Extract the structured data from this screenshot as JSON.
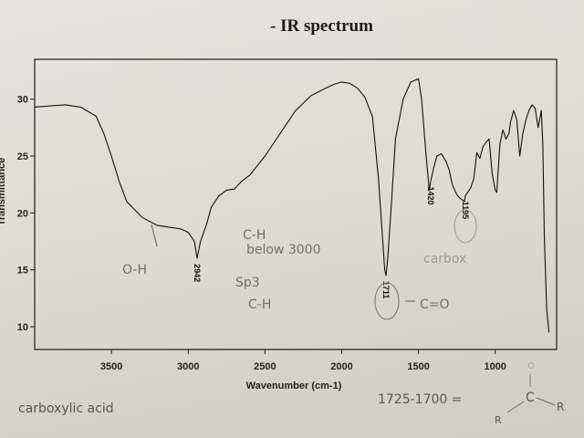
{
  "chart_data": {
    "type": "line",
    "title": "- IR spectrum",
    "xlabel": "Wavenumber (cm-1)",
    "ylabel": "Transmittance",
    "x_reversed": true,
    "xlim": [
      4000,
      600
    ],
    "ylim": [
      8,
      33.5
    ],
    "xticks": [
      3500,
      3000,
      2500,
      2000,
      1500,
      1000
    ],
    "xtick_labels": [
      "3500",
      "3000",
      "2500",
      "2000",
      "1500",
      "1000"
    ],
    "yticks": [
      10,
      15,
      20,
      25,
      30
    ],
    "ytick_labels": [
      "10",
      "15",
      "20",
      "25",
      "30"
    ],
    "grid": false,
    "series": [
      {
        "x": [
          4000,
          3900,
          3800,
          3700,
          3600,
          3550,
          3500,
          3450,
          3400,
          3300,
          3200,
          3100,
          3050,
          3000,
          2960,
          2942,
          2920,
          2880,
          2850,
          2800,
          2750,
          2700,
          2650,
          2600,
          2500,
          2400,
          2300,
          2200,
          2100,
          2050,
          2000,
          1950,
          1900,
          1850,
          1800,
          1760,
          1740,
          1720,
          1711,
          1700,
          1680,
          1650,
          1600,
          1550,
          1500,
          1480,
          1450,
          1430,
          1420,
          1400,
          1380,
          1350,
          1320,
          1300,
          1280,
          1250,
          1230,
          1200,
          1195,
          1180,
          1160,
          1140,
          1120,
          1100,
          1080,
          1060,
          1040,
          1020,
          1000,
          990,
          970,
          950,
          930,
          910,
          900,
          880,
          860,
          840,
          820,
          800,
          780,
          760,
          740,
          720,
          700,
          690,
          680,
          665,
          650
        ],
        "y": [
          29.3,
          29.4,
          29.5,
          29.3,
          28.5,
          27.0,
          25.0,
          22.8,
          21.0,
          19.6,
          18.9,
          18.7,
          18.6,
          18.3,
          17.5,
          16.0,
          17.5,
          19.0,
          20.5,
          21.5,
          22.0,
          22.1,
          22.8,
          23.3,
          25.0,
          27.0,
          29.0,
          30.3,
          31.0,
          31.3,
          31.5,
          31.4,
          31.0,
          30.2,
          28.5,
          23.0,
          19.0,
          15.0,
          14.5,
          16.0,
          20.0,
          26.5,
          30.0,
          31.5,
          31.8,
          30.0,
          25.0,
          22.0,
          22.8,
          24.0,
          25.0,
          25.2,
          24.5,
          23.8,
          22.5,
          21.6,
          21.3,
          21.0,
          21.5,
          21.8,
          22.2,
          23.0,
          25.3,
          24.8,
          25.8,
          26.2,
          26.5,
          23.5,
          22.0,
          21.8,
          26.0,
          27.3,
          26.5,
          27.0,
          28.0,
          29.0,
          28.2,
          25.0,
          27.0,
          28.2,
          29.0,
          29.5,
          29.2,
          27.5,
          29.0,
          26.0,
          18.0,
          11.5,
          9.5
        ]
      }
    ],
    "peak_labels": [
      {
        "x": 2942,
        "label": "2942"
      },
      {
        "x": 1711,
        "label": "1711"
      },
      {
        "x": 1420,
        "label": "1420"
      },
      {
        "x": 1195,
        "label": "1195"
      }
    ]
  },
  "annotations": {
    "oh": "O-H",
    "ch_line1": "C-H",
    "ch_line2": "below 3000",
    "sp3": "Sp3",
    "sp3_ch": "C-H",
    "carbonyl": "C=O",
    "carbox": "carbox",
    "carboxylic_acid": "carboxylic acid",
    "range": "1725-1700 =",
    "struct_o": "O",
    "struct_c": "C",
    "struct_r_left": "R",
    "struct_r_right": "R"
  },
  "colors": {
    "line": "#111111",
    "pencil": "#6e6e6e",
    "paper": "#e3e1dd"
  }
}
